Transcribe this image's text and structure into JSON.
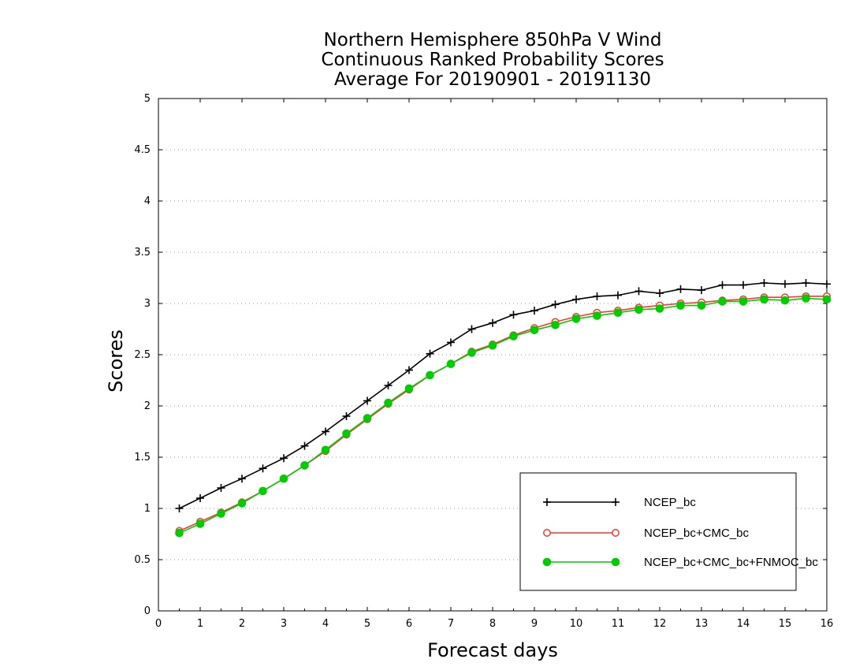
{
  "chart_data": {
    "type": "line",
    "title": [
      "Northern Hemisphere 850hPa V Wind",
      "Continuous Ranked Probability Scores",
      "Average For 20190901 - 20191130"
    ],
    "xlabel": "Forecast days",
    "ylabel": "Scores",
    "xlim": [
      0,
      16
    ],
    "ylim": [
      0,
      5
    ],
    "xticks": [
      0,
      1,
      2,
      3,
      4,
      5,
      6,
      7,
      8,
      9,
      10,
      11,
      12,
      13,
      14,
      15,
      16
    ],
    "yticks": [
      0,
      0.5,
      1,
      1.5,
      2,
      2.5,
      3,
      3.5,
      4,
      4.5,
      5
    ],
    "ytick_labels": [
      "0",
      "0.5",
      "1",
      "1.5",
      "2",
      "2.5",
      "3",
      "3.5",
      "4",
      "4.5",
      "5"
    ],
    "grid": "horizontal dotted",
    "legend_position": "bottom-right",
    "x": [
      0.5,
      1.0,
      1.5,
      2.0,
      2.5,
      3.0,
      3.5,
      4.0,
      4.5,
      5.0,
      5.5,
      6.0,
      6.5,
      7.0,
      7.5,
      8.0,
      8.5,
      9.0,
      9.5,
      10.0,
      10.5,
      11.0,
      11.5,
      12.0,
      12.5,
      13.0,
      13.5,
      14.0,
      14.5,
      15.0,
      15.5,
      16.0
    ],
    "series": [
      {
        "name": "NCEP_bc",
        "color": "#000000",
        "marker": "plus",
        "values": [
          1.0,
          1.1,
          1.2,
          1.29,
          1.39,
          1.49,
          1.61,
          1.75,
          1.9,
          2.05,
          2.2,
          2.35,
          2.51,
          2.62,
          2.75,
          2.81,
          2.89,
          2.93,
          2.99,
          3.04,
          3.07,
          3.08,
          3.12,
          3.1,
          3.14,
          3.13,
          3.18,
          3.18,
          3.2,
          3.19,
          3.2,
          3.19
        ]
      },
      {
        "name": "NCEP_bc+CMC_bc",
        "color": "#ff3333",
        "marker": "open-circle",
        "values": [
          0.78,
          0.87,
          0.96,
          1.06,
          1.17,
          1.29,
          1.42,
          1.56,
          1.72,
          1.87,
          2.02,
          2.16,
          2.3,
          2.41,
          2.53,
          2.6,
          2.69,
          2.76,
          2.82,
          2.87,
          2.91,
          2.93,
          2.96,
          2.98,
          3.0,
          3.01,
          3.03,
          3.04,
          3.06,
          3.06,
          3.07,
          3.07
        ]
      },
      {
        "name": "NCEP_bc+CMC_bc+FNMOC_bc",
        "color": "#00cc00",
        "marker": "filled-circle",
        "values": [
          0.76,
          0.85,
          0.95,
          1.05,
          1.17,
          1.29,
          1.42,
          1.57,
          1.73,
          1.88,
          2.03,
          2.17,
          2.3,
          2.41,
          2.52,
          2.59,
          2.68,
          2.74,
          2.79,
          2.85,
          2.88,
          2.91,
          2.94,
          2.95,
          2.98,
          2.98,
          3.02,
          3.02,
          3.04,
          3.03,
          3.05,
          3.04
        ]
      }
    ]
  }
}
